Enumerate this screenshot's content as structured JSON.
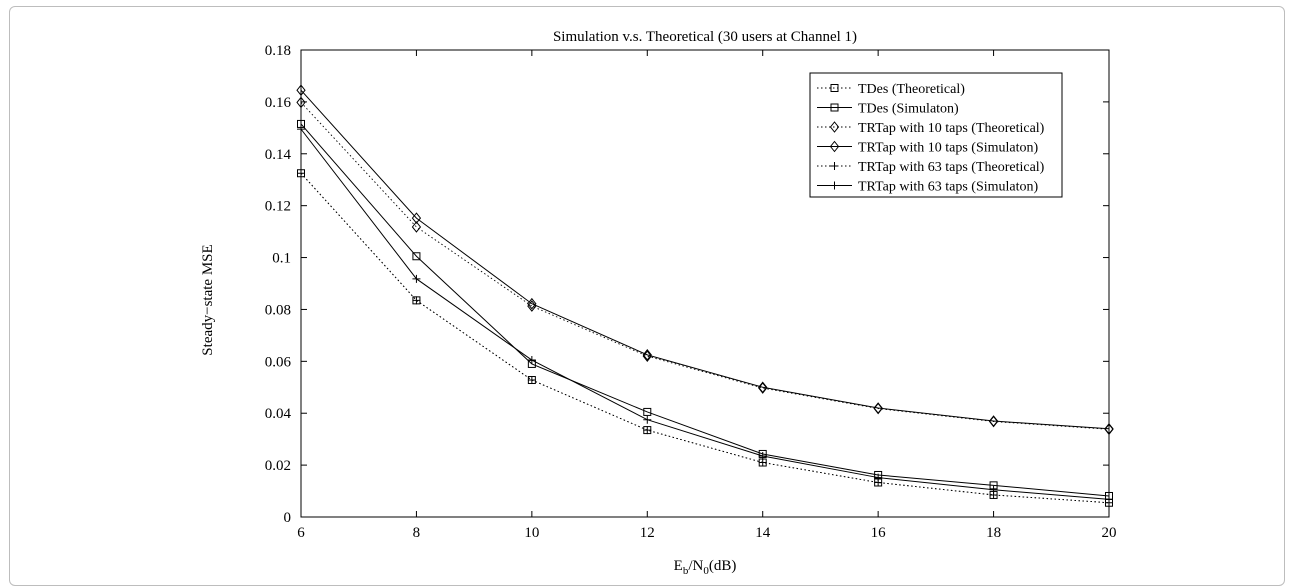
{
  "chart_data": {
    "type": "line",
    "title": "Simulation v.s. Theoretical (30 users at Channel 1)",
    "xlabel": {
      "main": "E",
      "sub1": "b",
      "mid": "/N",
      "sub2": "0",
      "tail": "(dB)"
    },
    "ylabel": "Steady−state MSE",
    "xlim": [
      6,
      20
    ],
    "ylim": [
      0,
      0.18
    ],
    "x": [
      6,
      8,
      10,
      12,
      14,
      16,
      18,
      20
    ],
    "x_ticks": [
      6,
      8,
      10,
      12,
      14,
      16,
      18,
      20
    ],
    "y_ticks": [
      0,
      0.02,
      0.04,
      0.06,
      0.08,
      0.1,
      0.12,
      0.14,
      0.16,
      0.18
    ],
    "y_tick_labels": [
      "0",
      "0.02",
      "0.04",
      "0.06",
      "0.08",
      "0.1",
      "0.12",
      "0.14",
      "0.16",
      "0.18"
    ],
    "grid": false,
    "legend_position": "top-right",
    "series": [
      {
        "name": "TDes (Theoretical)",
        "marker": "square",
        "dash": "dotted",
        "values": [
          0.1325,
          0.0835,
          0.0528,
          0.0335,
          0.021,
          0.0133,
          0.0085,
          0.0055
        ]
      },
      {
        "name": "TDes (Simulaton)",
        "marker": "square",
        "dash": "solid",
        "values": [
          0.1515,
          0.1005,
          0.059,
          0.0405,
          0.0243,
          0.0162,
          0.0122,
          0.0081
        ]
      },
      {
        "name": "TRTap with 10 taps (Theoretical)",
        "marker": "diamond",
        "dash": "dotted",
        "values": [
          0.1598,
          0.1118,
          0.0813,
          0.062,
          0.0497,
          0.0418,
          0.0368,
          0.0338
        ]
      },
      {
        "name": "TRTap with 10 taps (Simulaton)",
        "marker": "diamond",
        "dash": "solid",
        "values": [
          0.1645,
          0.1152,
          0.0822,
          0.0625,
          0.05,
          0.042,
          0.037,
          0.034
        ]
      },
      {
        "name": "TRTap with 63 taps (Theoretical)",
        "marker": "plus",
        "dash": "dotted",
        "values": [
          0.1325,
          0.0835,
          0.0528,
          0.0335,
          0.021,
          0.0133,
          0.0085,
          0.0055
        ]
      },
      {
        "name": "TRTap with 63 taps (Simulaton)",
        "marker": "plus",
        "dash": "solid",
        "values": [
          0.1495,
          0.0918,
          0.0605,
          0.0375,
          0.0235,
          0.0152,
          0.0105,
          0.0068
        ]
      }
    ]
  }
}
